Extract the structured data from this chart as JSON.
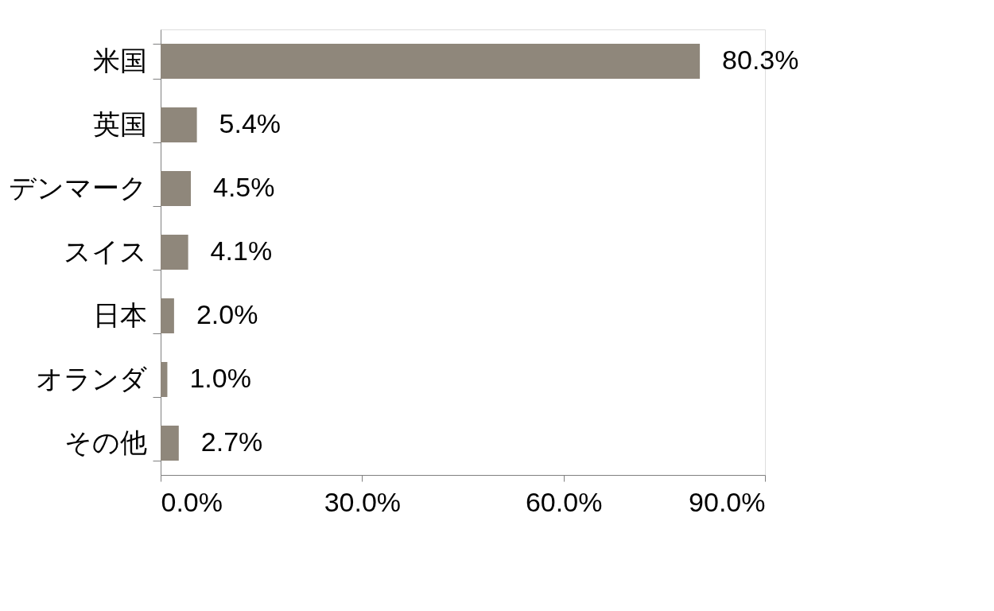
{
  "chart_data": {
    "type": "bar",
    "orientation": "horizontal",
    "categories": [
      "米国",
      "英国",
      "デンマーク",
      "スイス",
      "日本",
      "オランダ",
      "その他"
    ],
    "values": [
      80.3,
      5.4,
      4.5,
      4.1,
      2.0,
      1.0,
      2.7
    ],
    "value_labels": [
      "80.3%",
      "5.4%",
      "4.5%",
      "4.1%",
      "2.0%",
      "1.0%",
      "2.7%"
    ],
    "color": "#8f877b",
    "xlim": [
      0,
      90
    ],
    "xticks": [
      {
        "value": 0,
        "label": "0.0%"
      },
      {
        "value": 30,
        "label": "30.0%"
      },
      {
        "value": 60,
        "label": "60.0%"
      },
      {
        "value": 90,
        "label": "90.0%"
      }
    ],
    "grid": false
  }
}
